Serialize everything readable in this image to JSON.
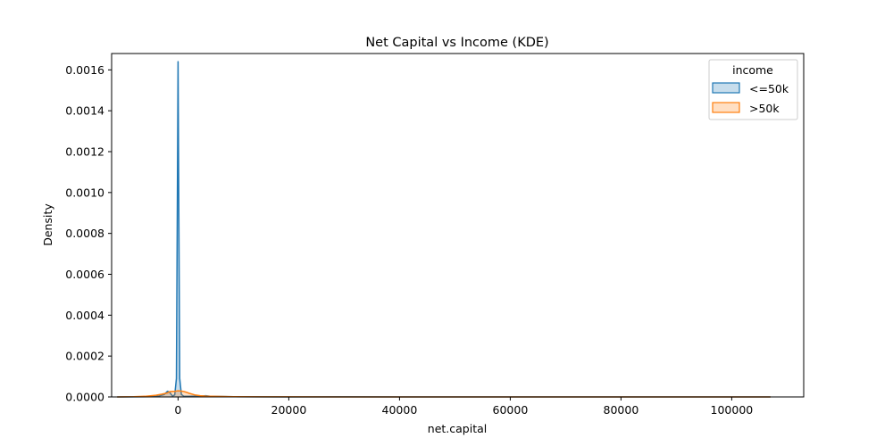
{
  "chart_data": {
    "type": "area",
    "title": "Net Capital vs Income (KDE)",
    "xlabel": "net.capital",
    "ylabel": "Density",
    "xlim": [
      -12000,
      113000
    ],
    "ylim": [
      0,
      0.00168
    ],
    "x_ticks": [
      0,
      20000,
      40000,
      60000,
      80000,
      100000
    ],
    "y_ticks": [
      0,
      0.0002,
      0.0004,
      0.0006,
      0.0008,
      0.001,
      0.0012,
      0.0014,
      0.0016
    ],
    "x_tick_labels": [
      "0",
      "20000",
      "40000",
      "60000",
      "80000",
      "100000"
    ],
    "y_tick_labels": [
      "0.0000",
      "0.0002",
      "0.0004",
      "0.0006",
      "0.0008",
      "0.0010",
      "0.0012",
      "0.0014",
      "0.0016"
    ],
    "grid": false,
    "legend": {
      "title": "income",
      "placement": "top-right"
    },
    "series": [
      {
        "name": "<=50k",
        "color": "#1f77b4",
        "x": [
          -11000,
          -5000,
          -3500,
          -2500,
          -1900,
          -1500,
          -1000,
          -600,
          -300,
          -100,
          0,
          100,
          300,
          600,
          1000,
          2000,
          3000,
          4000,
          5000,
          6000,
          8000,
          10000,
          20000,
          30000,
          40000,
          60000,
          80000,
          100000,
          107000
        ],
        "y": [
          0,
          1e-06,
          4e-06,
          1.2e-05,
          2.8e-05,
          2.2e-05,
          4e-06,
          1e-05,
          9e-05,
          0.0011,
          0.00164,
          0.0011,
          9e-05,
          1.2e-05,
          4e-06,
          3e-06,
          4e-06,
          4e-06,
          6e-06,
          3e-06,
          2e-06,
          1e-06,
          0,
          6e-07,
          0,
          0,
          0,
          0,
          0
        ]
      },
      {
        "name": ">50k",
        "color": "#ff7f0e",
        "x": [
          -11000,
          -8000,
          -6000,
          -4000,
          -3000,
          -2000,
          -1500,
          -1000,
          -500,
          0,
          500,
          1000,
          1500,
          2000,
          3000,
          4000,
          5000,
          6000,
          8000,
          10000,
          15000,
          20000,
          30000,
          40000,
          60000,
          80000,
          100000,
          107000
        ],
        "y": [
          0,
          1e-06,
          3e-06,
          8e-06,
          1.3e-05,
          1.9e-05,
          2.6e-05,
          2.7e-05,
          2.8e-05,
          3e-05,
          2.9e-05,
          2.7e-05,
          2.3e-05,
          1.8e-05,
          1e-05,
          6e-06,
          4e-06,
          3e-06,
          2e-06,
          1e-06,
          6e-07,
          4e-07,
          2e-07,
          1e-07,
          0,
          0,
          0,
          0
        ]
      }
    ]
  }
}
